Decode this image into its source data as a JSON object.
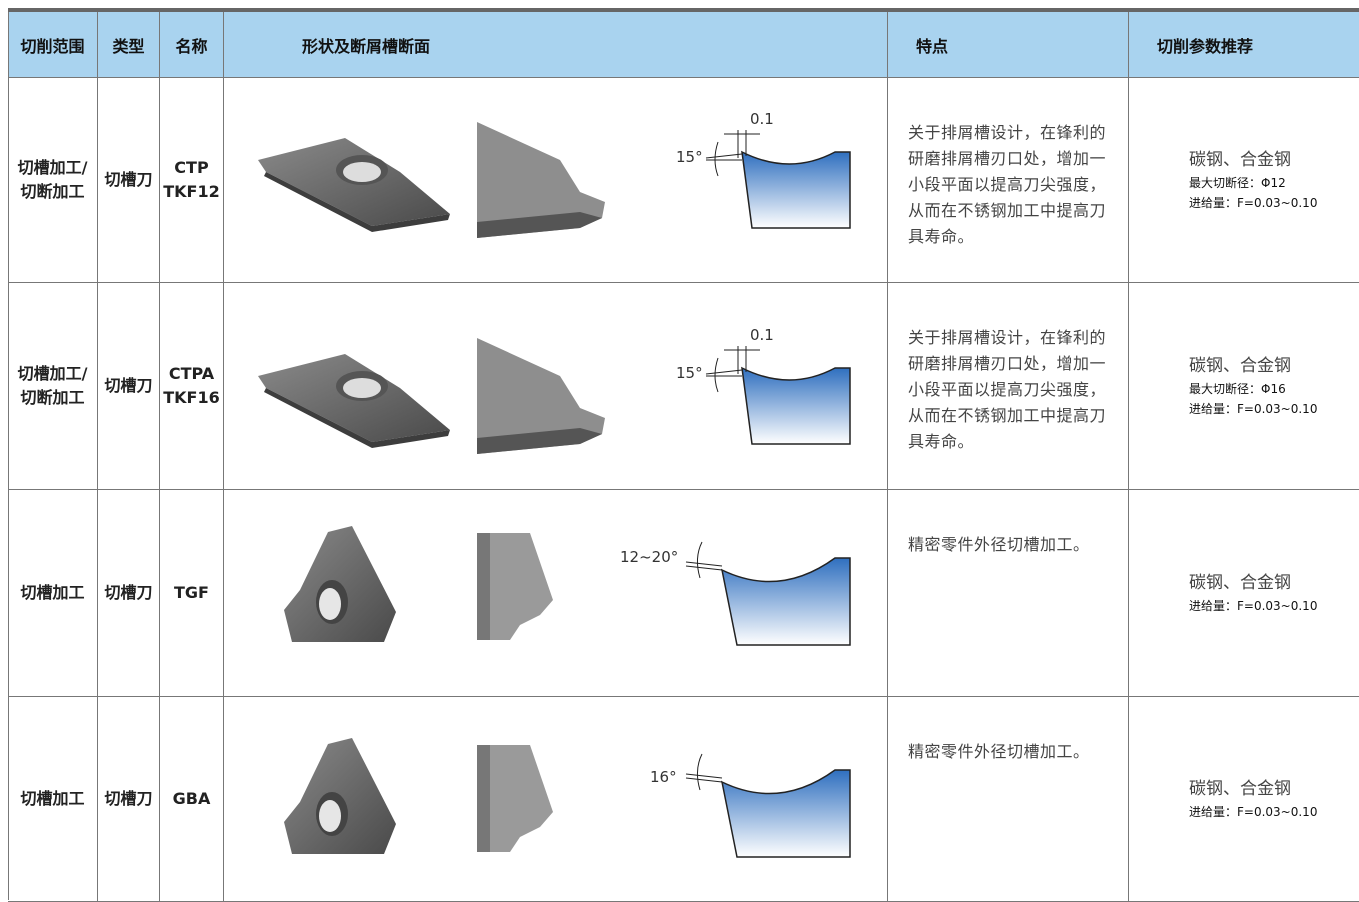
{
  "table": {
    "headers": [
      "切削范围",
      "类型",
      "名称",
      "形状及断屑槽断面",
      "特点",
      "切削参数推荐"
    ],
    "rows": [
      {
        "range": [
          "切槽加工/",
          "切断加工"
        ],
        "type": "切槽刀",
        "name": [
          "CTP",
          "TKF12"
        ],
        "diagram_labels": [
          "15°",
          "0.1"
        ],
        "feature": "关于排屑槽设计，在锋利的研磨排屑槽刃口处，增加一小段平面以提高刀尖强度，从而在不锈钢加工中提高刀具寿命。",
        "material": "碳钢、合金钢",
        "params": [
          "最大切断径：Φ12",
          "进给量：F=0.03~0.10"
        ]
      },
      {
        "range": [
          "切槽加工/",
          "切断加工"
        ],
        "type": "切槽刀",
        "name": [
          "CTPA",
          "TKF16"
        ],
        "diagram_labels": [
          "15°",
          "0.1"
        ],
        "feature": "关于排屑槽设计，在锋利的研磨排屑槽刃口处，增加一小段平面以提高刀尖强度，从而在不锈钢加工中提高刀具寿命。",
        "material": "碳钢、合金钢",
        "params": [
          "最大切断径：Φ16",
          "进给量：F=0.03~0.10"
        ]
      },
      {
        "range": [
          "切槽加工"
        ],
        "type": "切槽刀",
        "name": [
          "TGF"
        ],
        "diagram_labels": [
          "12~20°"
        ],
        "feature": "精密零件外径切槽加工。",
        "material": "碳钢、合金钢",
        "params": [
          "进给量：F=0.03~0.10"
        ]
      },
      {
        "range": [
          "切槽加工"
        ],
        "type": "切槽刀",
        "name": [
          "GBA"
        ],
        "diagram_labels": [
          "16°"
        ],
        "feature": "精密零件外径切槽加工。",
        "material": "碳钢、合金钢",
        "params": [
          "进给量：F=0.03~0.10"
        ]
      }
    ]
  }
}
